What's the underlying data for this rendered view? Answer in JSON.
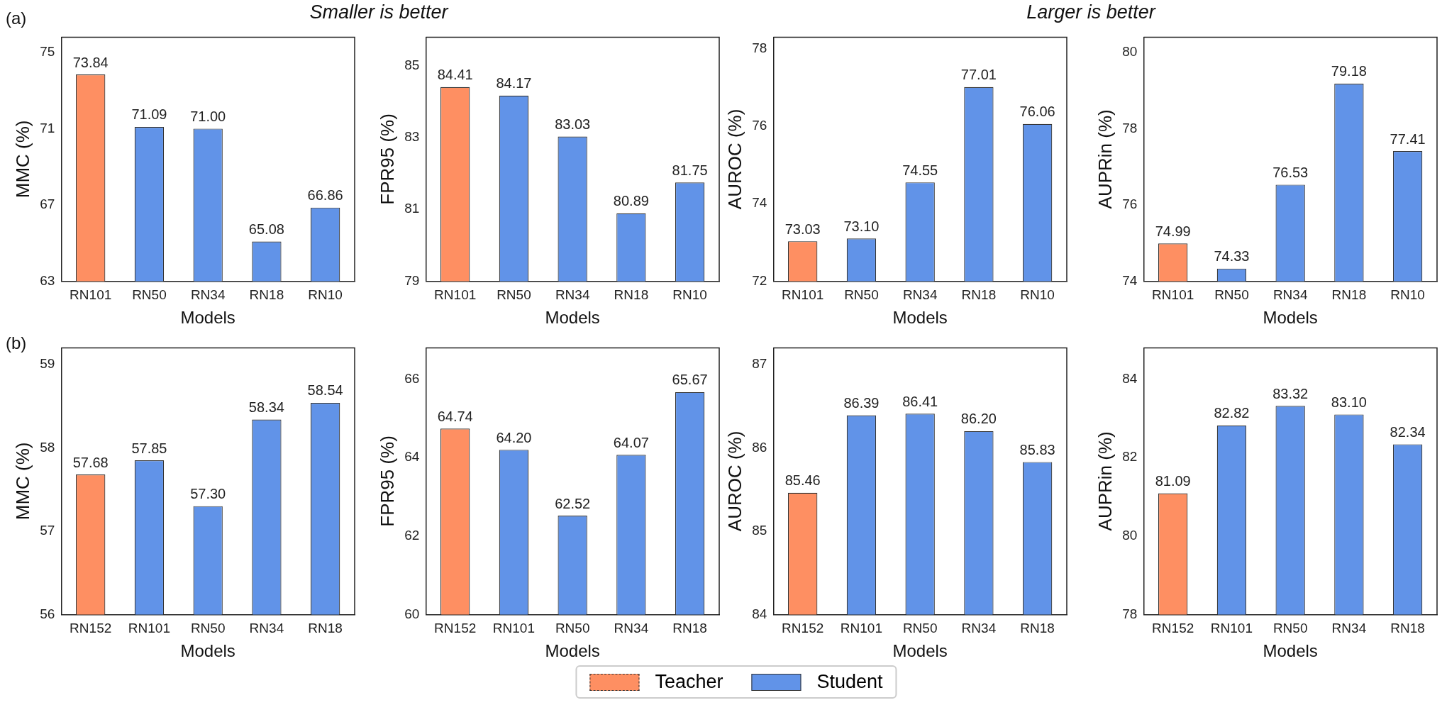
{
  "chart_data": [
    {
      "type": "bar",
      "ylabel": "MMC (%)",
      "xlabel": "Models",
      "legend": "bottom",
      "annotations": [
        "(a)",
        "Smaller is better"
      ],
      "categories": [
        "RN101",
        "RN50",
        "RN34",
        "RN18",
        "RN10"
      ],
      "ylim": [
        63,
        75.8
      ],
      "yticks": [
        63,
        67,
        71,
        75
      ],
      "series": [
        {
          "name": "Teacher",
          "color": "#fe8f62",
          "line_style": "dashed",
          "values": [
            73.84,
            null,
            null,
            null,
            null
          ],
          "value_labels": [
            "73.84",
            null,
            null,
            null,
            null
          ]
        },
        {
          "name": "Student",
          "color": "#6193e8",
          "values": [
            null,
            71.09,
            71.0,
            65.08,
            66.86
          ],
          "value_labels": [
            null,
            "71.09",
            "71.00",
            "65.08",
            "66.86"
          ]
        }
      ]
    },
    {
      "type": "bar",
      "ylabel": "FPR95 (%)",
      "xlabel": "Models",
      "categories": [
        "RN101",
        "RN50",
        "RN34",
        "RN18",
        "RN10"
      ],
      "ylim": [
        79,
        85.8
      ],
      "yticks": [
        79,
        81,
        83,
        85
      ],
      "series": [
        {
          "color": "#fe8f62",
          "line_style": "dashed",
          "values": [
            84.41,
            null,
            null,
            null,
            null
          ],
          "value_labels": [
            "84.41",
            null,
            null,
            null,
            null
          ]
        },
        {
          "color": "#6193e8",
          "values": [
            null,
            84.17,
            83.03,
            80.89,
            81.75
          ],
          "value_labels": [
            null,
            "84.17",
            "83.03",
            "80.89",
            "81.75"
          ]
        }
      ]
    },
    {
      "type": "bar",
      "ylabel": "AUROC (%)",
      "xlabel": "Models",
      "annotations": [
        "Larger is better"
      ],
      "categories": [
        "RN101",
        "RN50",
        "RN34",
        "RN18",
        "RN10"
      ],
      "ylim": [
        72,
        78.3
      ],
      "yticks": [
        72,
        74,
        76,
        78
      ],
      "series": [
        {
          "color": "#fe8f62",
          "line_style": "dashed",
          "values": [
            73.03,
            null,
            null,
            null,
            null
          ],
          "value_labels": [
            "73.03",
            null,
            null,
            null,
            null
          ]
        },
        {
          "color": "#6193e8",
          "values": [
            null,
            73.1,
            74.55,
            77.01,
            76.06
          ],
          "value_labels": [
            null,
            "73.10",
            "74.55",
            "77.01",
            "76.06"
          ]
        }
      ]
    },
    {
      "type": "bar",
      "ylabel": "AUPRin (%)",
      "xlabel": "Models",
      "categories": [
        "RN101",
        "RN50",
        "RN34",
        "RN18",
        "RN10"
      ],
      "ylim": [
        74,
        80.4
      ],
      "yticks": [
        74,
        76,
        78,
        80
      ],
      "series": [
        {
          "color": "#fe8f62",
          "line_style": "dashed",
          "values": [
            74.99,
            null,
            null,
            null,
            null
          ],
          "value_labels": [
            "74.99",
            null,
            null,
            null,
            null
          ]
        },
        {
          "color": "#6193e8",
          "values": [
            null,
            74.33,
            76.53,
            79.18,
            77.41
          ],
          "value_labels": [
            null,
            "74.33",
            "76.53",
            "79.18",
            "77.41"
          ]
        }
      ]
    },
    {
      "type": "bar",
      "ylabel": "MMC (%)",
      "xlabel": "Models",
      "annotations": [
        "(b)"
      ],
      "categories": [
        "RN152",
        "RN101",
        "RN50",
        "RN34",
        "RN18"
      ],
      "ylim": [
        56,
        59.2
      ],
      "yticks": [
        56,
        57,
        58,
        59
      ],
      "series": [
        {
          "color": "#fe8f62",
          "line_style": "dashed",
          "values": [
            57.68,
            null,
            null,
            null,
            null
          ],
          "value_labels": [
            "57.68",
            null,
            null,
            null,
            null
          ]
        },
        {
          "color": "#6193e8",
          "values": [
            null,
            57.85,
            57.3,
            58.34,
            58.54
          ],
          "value_labels": [
            null,
            "57.85",
            "57.30",
            "58.34",
            "58.54"
          ]
        }
      ]
    },
    {
      "type": "bar",
      "ylabel": "FPR95 (%)",
      "xlabel": "Models",
      "categories": [
        "RN152",
        "RN101",
        "RN50",
        "RN34",
        "RN18"
      ],
      "ylim": [
        60,
        66.8
      ],
      "yticks": [
        60,
        62,
        64,
        66
      ],
      "series": [
        {
          "color": "#fe8f62",
          "line_style": "dashed",
          "values": [
            64.74,
            null,
            null,
            null,
            null
          ],
          "value_labels": [
            "64.74",
            null,
            null,
            null,
            null
          ]
        },
        {
          "color": "#6193e8",
          "values": [
            null,
            64.2,
            62.52,
            64.07,
            65.67
          ],
          "value_labels": [
            null,
            "64.20",
            "62.52",
            "64.07",
            "65.67"
          ]
        }
      ]
    },
    {
      "type": "bar",
      "ylabel": "AUROC (%)",
      "xlabel": "Models",
      "categories": [
        "RN152",
        "RN101",
        "RN50",
        "RN34",
        "RN18"
      ],
      "ylim": [
        84,
        87.2
      ],
      "yticks": [
        84,
        85,
        86,
        87
      ],
      "series": [
        {
          "color": "#fe8f62",
          "line_style": "dashed",
          "values": [
            85.46,
            null,
            null,
            null,
            null
          ],
          "value_labels": [
            "85.46",
            null,
            null,
            null,
            null
          ]
        },
        {
          "color": "#6193e8",
          "values": [
            null,
            86.39,
            86.41,
            86.2,
            85.83
          ],
          "value_labels": [
            null,
            "86.39",
            "86.41",
            "86.20",
            "85.83"
          ]
        }
      ]
    },
    {
      "type": "bar",
      "ylabel": "AUPRin (%)",
      "xlabel": "Models",
      "categories": [
        "RN152",
        "RN101",
        "RN50",
        "RN34",
        "RN18"
      ],
      "ylim": [
        78,
        84.8
      ],
      "yticks": [
        78,
        80,
        82,
        84
      ],
      "series": [
        {
          "color": "#fe8f62",
          "line_style": "dashed",
          "values": [
            81.09,
            null,
            null,
            null,
            null
          ],
          "value_labels": [
            "81.09",
            null,
            null,
            null,
            null
          ]
        },
        {
          "color": "#6193e8",
          "values": [
            null,
            82.82,
            83.32,
            83.1,
            82.34
          ],
          "value_labels": [
            null,
            "82.82",
            "83.32",
            "83.10",
            "82.34"
          ]
        }
      ]
    }
  ]
}
